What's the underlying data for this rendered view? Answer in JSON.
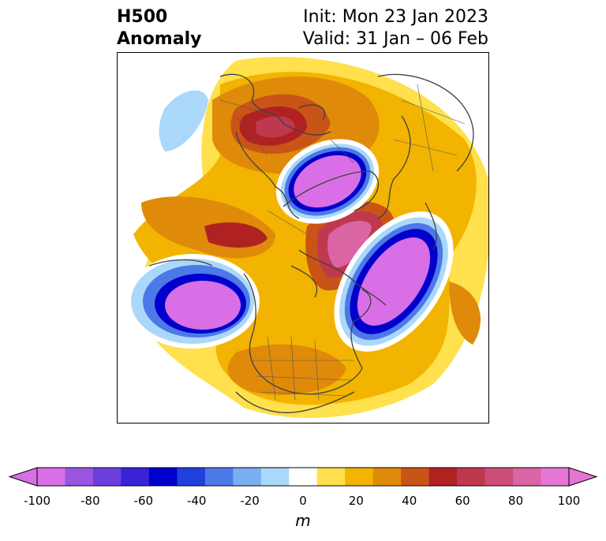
{
  "title": {
    "variable": "H500",
    "field": "Anomaly",
    "init": "Init: Mon 23 Jan 2023",
    "valid": "Valid: 31 Jan – 06 Feb"
  },
  "map": {
    "projection": "north polar stereographic",
    "colors": {
      "coastline": "#3f3f3f",
      "land_border": "#555555"
    }
  },
  "colorbar": {
    "units": "m",
    "ticks": [
      "-100",
      "-80",
      "-60",
      "-40",
      "-20",
      "0",
      "20",
      "40",
      "60",
      "80",
      "100"
    ],
    "levels": [
      -100,
      -90,
      -80,
      -70,
      -60,
      -50,
      -40,
      -30,
      -20,
      -10,
      10,
      20,
      30,
      40,
      50,
      60,
      70,
      80,
      90,
      100
    ],
    "colors": [
      "#d96fe6",
      "#9a55e0",
      "#6a3fdc",
      "#3a22d6",
      "#0000cc",
      "#2040dd",
      "#4d78e8",
      "#79aef0",
      "#aad8fa",
      "#ffffff",
      "#ffe04d",
      "#f2b400",
      "#e08a0a",
      "#c95417",
      "#b02222",
      "#c0384e",
      "#cc4d78",
      "#d965a4",
      "#e576d6"
    ],
    "extend_min_color": "#d96fe6",
    "extend_max_color": "#e576d6"
  }
}
